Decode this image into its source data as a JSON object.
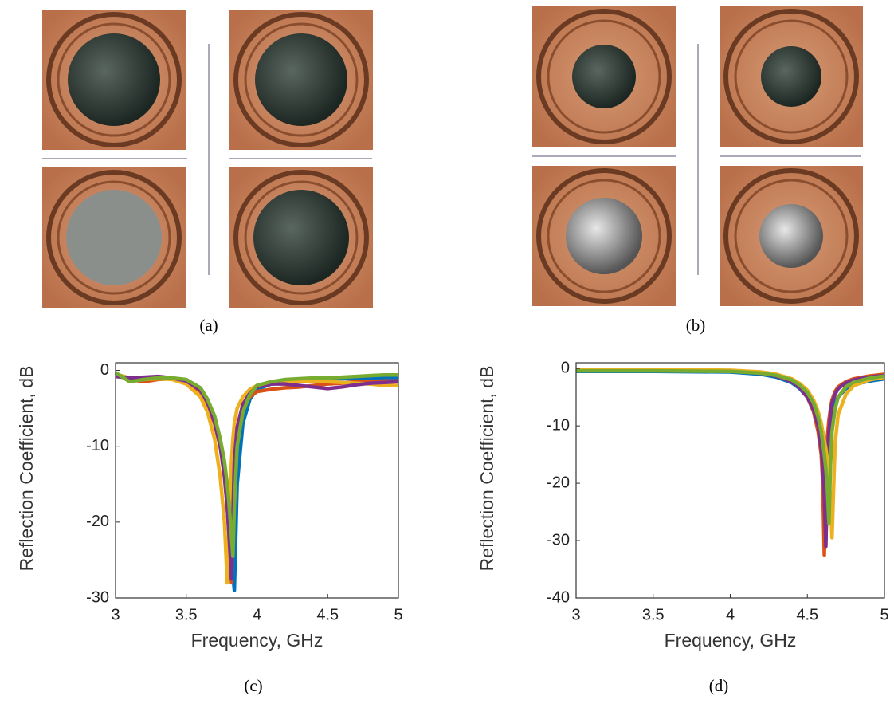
{
  "figure_labels": [
    "(a)",
    "(b)",
    "(c)",
    "(d)"
  ],
  "chart_data": [
    {
      "type": "line",
      "xlabel": "Frequency, GHz",
      "ylabel": "Reflection Coefficient, dB",
      "xlim": [
        3,
        5
      ],
      "ylim": [
        -30,
        1
      ],
      "xticks": [
        3,
        3.5,
        4,
        4.5,
        5
      ],
      "yticks": [
        -30,
        -20,
        -10,
        0
      ],
      "x": [
        3,
        3.1,
        3.2,
        3.3,
        3.4,
        3.5,
        3.6,
        3.65,
        3.7,
        3.74,
        3.77,
        3.79,
        3.8,
        3.81,
        3.82,
        3.83,
        3.84,
        3.86,
        3.9,
        3.95,
        4,
        4.1,
        4.2,
        4.3,
        4.4,
        4.5,
        4.6,
        4.7,
        4.8,
        4.9,
        5
      ],
      "series": [
        {
          "color": "#0072bd",
          "values": [
            -0.5,
            -1,
            -1.2,
            -1,
            -1,
            -1.3,
            -2.5,
            -4,
            -6.5,
            -9.5,
            -13,
            -16,
            -18,
            -20.5,
            -23.5,
            -27,
            -29,
            -15,
            -7,
            -3.8,
            -2.5,
            -1.8,
            -1.5,
            -1.3,
            -1.2,
            -1.1,
            -1.1,
            -1.1,
            -1.1,
            -1,
            -1
          ]
        },
        {
          "color": "#d95319",
          "values": [
            -0.5,
            -1.2,
            -1.5,
            -1.2,
            -1.1,
            -1.5,
            -2.8,
            -4.5,
            -7,
            -10,
            -14,
            -18,
            -21,
            -25,
            -28,
            -20,
            -12,
            -8,
            -5,
            -3.5,
            -2.8,
            -2.5,
            -2.3,
            -2.2,
            -2,
            -1.8,
            -1.7,
            -1.5,
            -1.5,
            -1.4,
            -1.4
          ]
        },
        {
          "color": "#edb120",
          "values": [
            -0.5,
            -1,
            -1.2,
            -1.1,
            -1.2,
            -1.8,
            -3.5,
            -5.5,
            -9,
            -14,
            -20,
            -28,
            -22,
            -16,
            -12,
            -9,
            -7,
            -5,
            -3.5,
            -2.5,
            -2,
            -1.6,
            -1.5,
            -1.5,
            -1.5,
            -1.5,
            -1.6,
            -1.7,
            -1.8,
            -2,
            -2
          ]
        },
        {
          "color": "#7e2f8e",
          "values": [
            -0.8,
            -1,
            -0.9,
            -0.8,
            -1,
            -1.4,
            -2.6,
            -4.2,
            -6.8,
            -10,
            -14,
            -18,
            -21,
            -24,
            -27.5,
            -19,
            -12,
            -7.5,
            -4.5,
            -3,
            -2.2,
            -1.8,
            -1.8,
            -2,
            -2.2,
            -2.4,
            -2.2,
            -1.9,
            -1.7,
            -1.6,
            -1.5
          ]
        },
        {
          "color": "#77ac30",
          "values": [
            -0.3,
            -1.5,
            -1.2,
            -1,
            -1,
            -1.2,
            -2.3,
            -3.8,
            -6,
            -9,
            -12,
            -15,
            -17,
            -19.5,
            -22,
            -24.5,
            -18,
            -10,
            -5.5,
            -3.2,
            -2,
            -1.5,
            -1.2,
            -1.1,
            -1,
            -1,
            -0.9,
            -0.8,
            -0.7,
            -0.6,
            -0.6
          ]
        }
      ]
    },
    {
      "type": "line",
      "xlabel": "Frequency, GHz",
      "ylabel": "Reflection Coefficient, dB",
      "xlim": [
        3,
        5
      ],
      "ylim": [
        -40,
        1
      ],
      "xticks": [
        3,
        3.5,
        4,
        4.5,
        5
      ],
      "yticks": [
        -40,
        -30,
        -20,
        -10,
        0
      ],
      "x": [
        3,
        3.5,
        4,
        4.2,
        4.3,
        4.4,
        4.45,
        4.5,
        4.54,
        4.57,
        4.59,
        4.6,
        4.61,
        4.62,
        4.63,
        4.64,
        4.65,
        4.66,
        4.68,
        4.7,
        4.75,
        4.8,
        4.9,
        5
      ],
      "series": [
        {
          "color": "#0072bd",
          "values": [
            -0.5,
            -0.5,
            -0.6,
            -1,
            -1.5,
            -2.5,
            -3.5,
            -5,
            -7,
            -9.5,
            -12,
            -14,
            -17,
            -30,
            -20,
            -14,
            -10,
            -8,
            -6,
            -5,
            -3.5,
            -2.8,
            -2.2,
            -1.8
          ]
        },
        {
          "color": "#d95319",
          "values": [
            -0.3,
            -0.3,
            -0.4,
            -0.8,
            -1.3,
            -2.3,
            -3.3,
            -5,
            -7.5,
            -11,
            -15,
            -20,
            -32.5,
            -18,
            -12,
            -9,
            -7,
            -5.5,
            -4,
            -3.2,
            -2.3,
            -1.8,
            -1.3,
            -1
          ]
        },
        {
          "color": "#7e2f8e",
          "values": [
            -0.3,
            -0.3,
            -0.4,
            -0.8,
            -1.3,
            -2.3,
            -3.3,
            -5,
            -7.2,
            -10,
            -14,
            -17,
            -22,
            -31,
            -16,
            -11,
            -8,
            -6,
            -4.5,
            -3.5,
            -2.5,
            -2,
            -1.5,
            -1.2
          ]
        },
        {
          "color": "#edb120",
          "values": [
            -0.2,
            -0.2,
            -0.3,
            -0.6,
            -1,
            -1.8,
            -2.6,
            -3.8,
            -5.5,
            -7.5,
            -9.5,
            -11,
            -12.5,
            -14,
            -16,
            -19,
            -23,
            -29.5,
            -13,
            -8,
            -4.5,
            -3,
            -2,
            -1.5
          ]
        },
        {
          "color": "#77ac30",
          "values": [
            -0.4,
            -0.4,
            -0.5,
            -0.8,
            -1.2,
            -2,
            -2.9,
            -4.2,
            -6,
            -8.5,
            -11,
            -13,
            -15,
            -17.5,
            -21,
            -27,
            -17,
            -11,
            -7,
            -5,
            -3.2,
            -2.4,
            -1.7,
            -1.3
          ]
        }
      ]
    }
  ]
}
